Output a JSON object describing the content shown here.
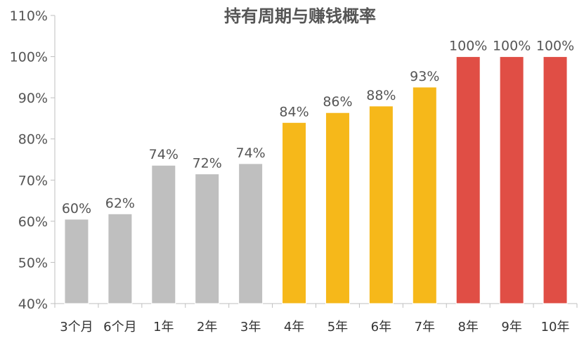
{
  "chart_data": {
    "type": "bar",
    "title": "持有周期与赚钱概率",
    "xlabel": "",
    "ylabel": "",
    "categories": [
      "3个月",
      "6个月",
      "1年",
      "2年",
      "3年",
      "4年",
      "5年",
      "6年",
      "7年",
      "8年",
      "9年",
      "10年"
    ],
    "values": [
      60.5,
      61.8,
      73.6,
      71.5,
      74.0,
      84.0,
      86.4,
      88.0,
      92.6,
      100,
      100,
      100
    ],
    "data_labels": [
      "60%",
      "62%",
      "74%",
      "72%",
      "74%",
      "84%",
      "86%",
      "88%",
      "93%",
      "100%",
      "100%",
      "100%"
    ],
    "ylim": [
      40,
      110
    ],
    "y_ticks": [
      40,
      50,
      60,
      70,
      80,
      90,
      100,
      110
    ],
    "y_tick_labels": [
      "40%",
      "50%",
      "60%",
      "70%",
      "80%",
      "90%",
      "100%",
      "110%"
    ],
    "bar_colors": [
      "#BFBFBF",
      "#BFBFBF",
      "#BFBFBF",
      "#BFBFBF",
      "#BFBFBF",
      "#F6B81A",
      "#F6B81A",
      "#F6B81A",
      "#F6B81A",
      "#E04E45",
      "#E04E45",
      "#E04E45"
    ],
    "grid": false,
    "legend": "none"
  },
  "colors": {
    "axis": "#BFBFBF",
    "grey": "#BFBFBF",
    "gold": "#F6B81A",
    "red": "#E04E45"
  }
}
